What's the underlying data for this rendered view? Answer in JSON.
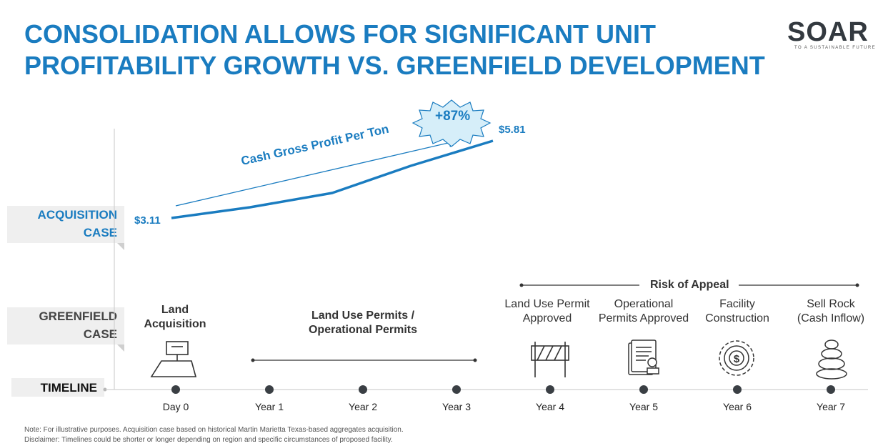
{
  "header": {
    "title_line1": "CONSOLIDATION ALLOWS FOR SIGNIFICANT UNIT",
    "title_line2": "PROFITABILITY GROWTH VS. GREENFIELD DEVELOPMENT"
  },
  "logo": {
    "wordmark": "SOAR",
    "tagline": "TO A SUSTAINABLE FUTURE"
  },
  "colors": {
    "accent": "#1a7cc0",
    "dark": "#333333",
    "label_bg": "#efefef"
  },
  "row_labels": {
    "acquisition": [
      "ACQUISITION",
      "CASE"
    ],
    "greenfield": [
      "GREENFIELD",
      "CASE"
    ],
    "timeline": "TIMELINE"
  },
  "acquisition_chart": {
    "start_value": "$3.11",
    "end_value": "$5.81",
    "arrow_label": "Cash Gross Profit Per Ton",
    "growth_badge": "+87%"
  },
  "greenfield": {
    "land_acquisition": [
      "Land",
      "Acquisition"
    ],
    "permits": [
      "Land Use Permits /",
      "Operational Permits"
    ],
    "risk_of_appeal": "Risk of Appeal",
    "stages": [
      {
        "line1": "Land Use Permit",
        "line2": "Approved",
        "icon": "barricade-icon"
      },
      {
        "line1": "Operational",
        "line2": "Permits Approved",
        "icon": "permit-document-icon"
      },
      {
        "line1": "Facility",
        "line2": "Construction",
        "icon": "dollar-gear-icon"
      },
      {
        "line1": "Sell Rock",
        "line2": "(Cash Inflow)",
        "icon": "stacked-rocks-icon"
      }
    ],
    "land_icon": "land-sign-icon"
  },
  "timeline": {
    "ticks": [
      "Day 0",
      "Year 1",
      "Year 2",
      "Year 3",
      "Year 4",
      "Year 5",
      "Year 6",
      "Year 7"
    ]
  },
  "footnotes": {
    "note": "Note: For illustrative purposes. Acquisition case based on historical Martin Marietta Texas-based aggregates acquisition.",
    "disclaimer": "Disclaimer: Timelines could be shorter or longer depending on region and specific circumstances of proposed facility."
  }
}
